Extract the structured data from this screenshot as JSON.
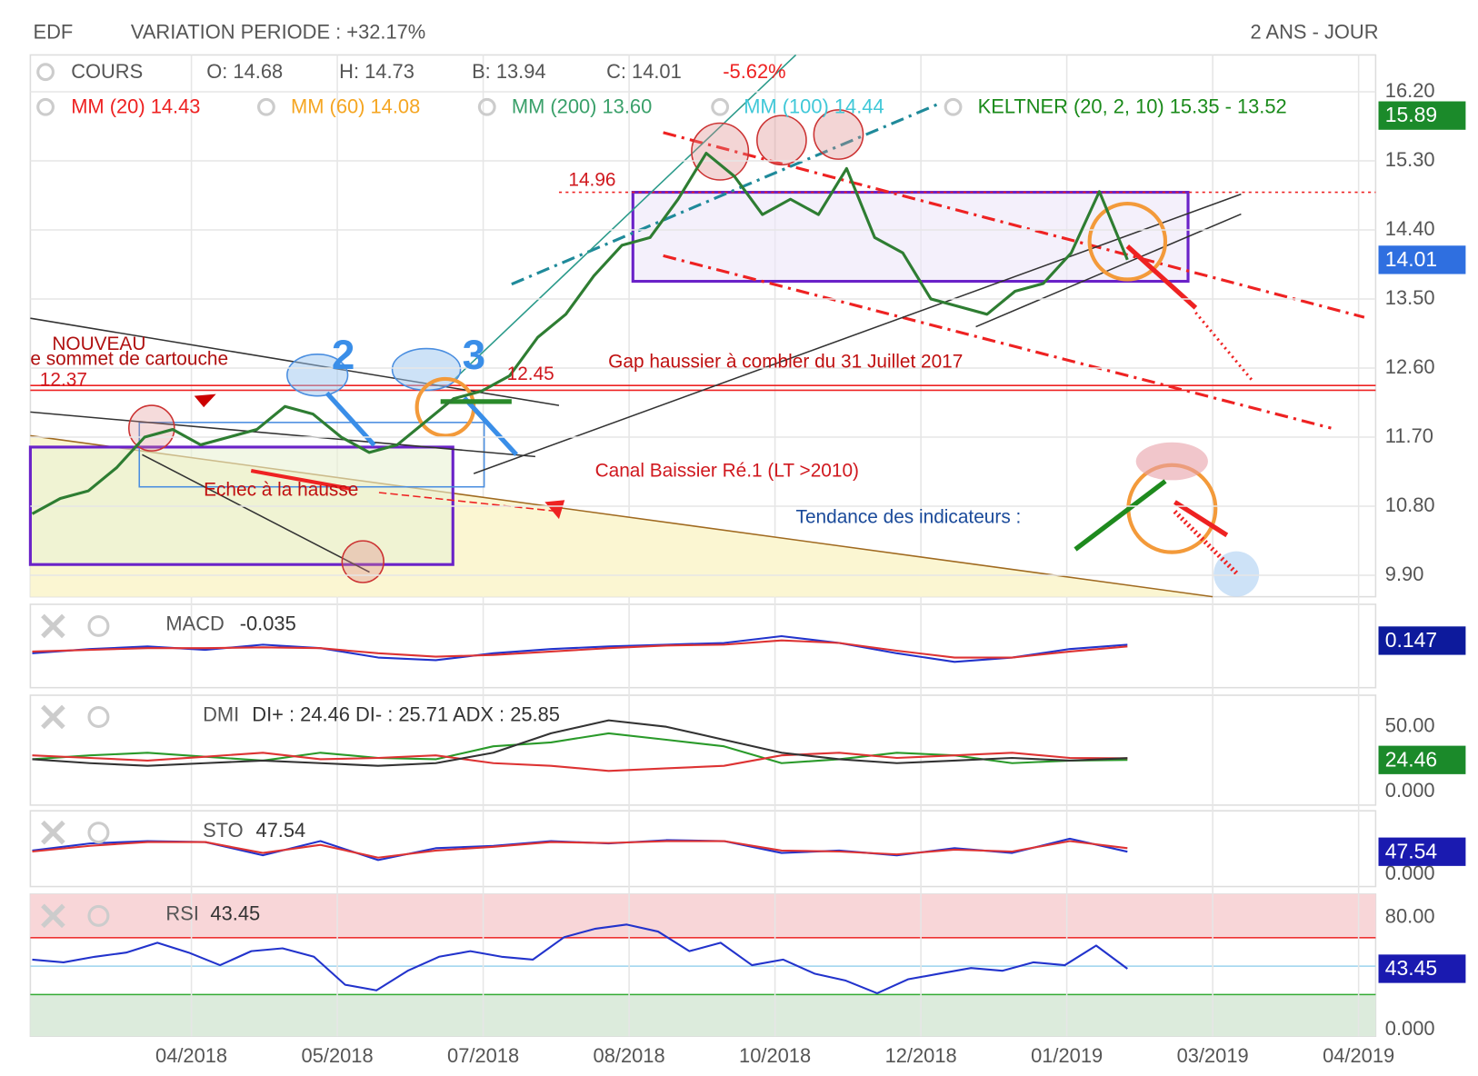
{
  "header": {
    "symbol": "EDF",
    "variation": "VARIATION PERIODE : +32.17%",
    "period": "2 ANS - JOUR"
  },
  "legend": {
    "cours": "COURS",
    "open": "O: 14.68",
    "high": "H: 14.73",
    "low": "B: 13.94",
    "close": "C: 14.01",
    "change": "-5.62%",
    "mm20": "MM (20) 14.43",
    "mm60": "MM (60) 14.08",
    "mm200": "MM (200) 13.60",
    "mm100": "MM (100) 14.44",
    "keltner": "KELTNER (20, 2, 10) 15.35 - 13.52"
  },
  "annotations": {
    "level_1496": "14.96",
    "nouveau": "NOUVEAU",
    "sommet": "e sommet de cartouche",
    "level_1237": "12.37",
    "level_1245": "12.45",
    "gap": "Gap haussier à combler du 31 Juillet 2017",
    "canal": "Canal Baissier Ré.1 (LT >2010)",
    "echec": "Echec à la hausse",
    "tendance": "Tendance des indicateurs :",
    "wave_2": "2",
    "wave_3": "3"
  },
  "panels": {
    "macd": {
      "name": "MACD",
      "value": "-0.035"
    },
    "dmi": {
      "name": "DMI",
      "value": "DI+ : 24.46 DI- : 25.71 ADX : 25.85"
    },
    "sto": {
      "name": "STO",
      "value": "47.54"
    },
    "rsi": {
      "name": "RSI",
      "value": "43.45"
    }
  },
  "x_axis": {
    "labels": [
      "04/2018",
      "05/2018",
      "07/2018",
      "08/2018",
      "10/2018",
      "12/2018",
      "01/2019",
      "03/2019",
      "04/2019"
    ]
  },
  "chart_data": [
    {
      "type": "line",
      "ylim": [
        9.62,
        16.68
      ],
      "grid": true,
      "yticks": [
        {
          "value": 16.2,
          "label": "16.20"
        },
        {
          "value": 15.3,
          "label": "15.30"
        },
        {
          "value": 14.4,
          "label": "14.40"
        },
        {
          "value": 13.5,
          "label": "13.50"
        },
        {
          "value": 12.6,
          "label": "12.60"
        },
        {
          "value": 11.7,
          "label": "11.70"
        },
        {
          "value": 10.8,
          "label": "10.80"
        },
        {
          "value": 9.9,
          "label": "9.90"
        }
      ],
      "series": [
        {
          "color": "#2e7d32",
          "values": [
            10.7,
            10.9,
            11.0,
            11.3,
            11.7,
            11.8,
            11.6,
            11.7,
            11.8,
            12.1,
            12.0,
            11.7,
            11.5,
            11.6,
            11.9,
            12.2,
            12.3,
            12.5,
            13.0,
            13.3,
            13.8,
            14.2,
            14.3,
            14.8,
            15.4,
            15.1,
            14.6,
            14.8,
            14.6,
            15.2,
            14.3,
            14.1,
            13.5,
            13.4,
            13.3,
            13.6,
            13.7,
            14.1,
            14.9,
            14.01
          ]
        }
      ],
      "badges": [
        15.89,
        14.01
      ],
      "badge_colors": [
        "#1b8a2a",
        "#2f6fe0"
      ]
    },
    {
      "type": "line",
      "ylim": [
        -0.4,
        0.57
      ],
      "series": [
        {
          "color": "#2233cc",
          "values": [
            0.0,
            0.05,
            0.08,
            0.04,
            0.1,
            0.06,
            -0.05,
            -0.08,
            0.0,
            0.05,
            0.08,
            0.1,
            0.12,
            0.2,
            0.12,
            0.0,
            -0.1,
            -0.05,
            0.05,
            0.1
          ]
        },
        {
          "color": "#dd3333",
          "values": [
            0.02,
            0.04,
            0.06,
            0.06,
            0.07,
            0.06,
            0.0,
            -0.04,
            -0.02,
            0.02,
            0.06,
            0.09,
            0.1,
            0.15,
            0.12,
            0.03,
            -0.05,
            -0.05,
            0.02,
            0.08
          ]
        }
      ],
      "badges": [
        0.147
      ],
      "badge_colors": [
        "#0d1a9c"
      ]
    },
    {
      "type": "line",
      "ylim": [
        -10.3,
        74.3
      ],
      "yticks": [
        {
          "value": 50,
          "label": "50.00"
        },
        {
          "value": 0,
          "label": "0.000"
        }
      ],
      "series": [
        {
          "color": "#2a9a2a",
          "values": [
            25,
            28,
            30,
            27,
            24,
            30,
            26,
            25,
            35,
            38,
            45,
            40,
            35,
            22,
            25,
            30,
            28,
            22,
            24,
            24.46
          ]
        },
        {
          "color": "#dd3333",
          "values": [
            28,
            26,
            24,
            27,
            30,
            25,
            26,
            28,
            22,
            20,
            16,
            18,
            20,
            28,
            30,
            26,
            28,
            30,
            26,
            25.71
          ]
        },
        {
          "color": "#333333",
          "values": [
            25,
            22,
            20,
            22,
            24,
            22,
            20,
            22,
            30,
            45,
            55,
            50,
            40,
            30,
            25,
            22,
            24,
            26,
            24,
            25.85
          ]
        }
      ],
      "badges": [
        24.46
      ],
      "badge_colors": [
        "#1b8a2a"
      ]
    },
    {
      "type": "line",
      "ylim": [
        -26,
        134
      ],
      "yticks": [
        {
          "value": 0,
          "label": "0.000"
        }
      ],
      "series": [
        {
          "color": "#2233cc",
          "values": [
            50,
            65,
            70,
            68,
            40,
            70,
            30,
            55,
            60,
            70,
            65,
            72,
            70,
            45,
            50,
            40,
            55,
            45,
            75,
            47.54
          ]
        },
        {
          "color": "#dd3333",
          "values": [
            48,
            60,
            68,
            68,
            45,
            62,
            35,
            50,
            58,
            68,
            66,
            70,
            70,
            50,
            48,
            42,
            52,
            48,
            70,
            55
          ]
        }
      ],
      "badges": [
        47.54
      ],
      "badge_colors": [
        "#1a1ab0"
      ]
    },
    {
      "type": "line",
      "ylim": [
        -4.7,
        96.7
      ],
      "yticks": [
        {
          "value": 80,
          "label": "80.00"
        },
        {
          "value": 0,
          "label": "0.000"
        }
      ],
      "series": [
        {
          "color": "#2233cc",
          "values": [
            50,
            48,
            52,
            55,
            62,
            55,
            46,
            56,
            58,
            52,
            32,
            28,
            42,
            52,
            56,
            52,
            50,
            66,
            72,
            75,
            70,
            56,
            62,
            46,
            50,
            40,
            35,
            26,
            36,
            40,
            44,
            42,
            48,
            46,
            60,
            43.45
          ]
        }
      ],
      "badges": [
        43.45
      ],
      "badge_colors": [
        "#1a1ab0"
      ]
    }
  ]
}
